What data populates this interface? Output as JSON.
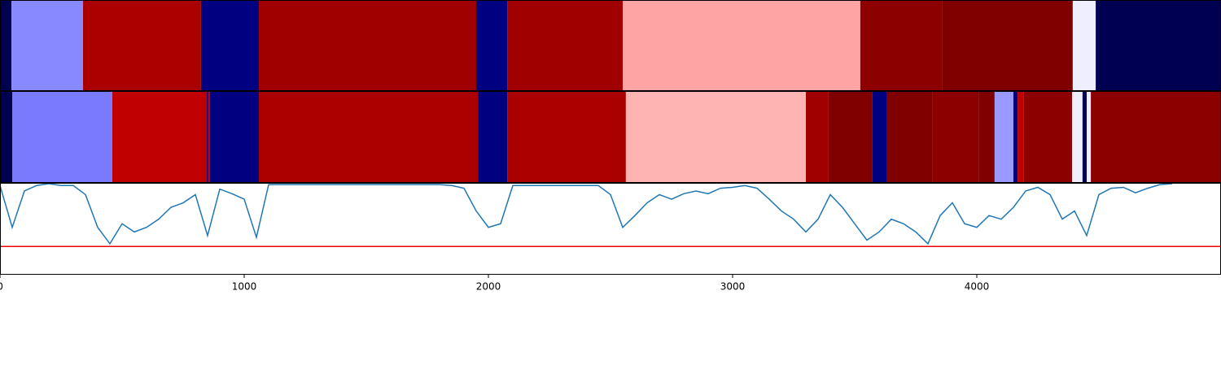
{
  "chart_data": [
    {
      "type": "segments",
      "xlim": [
        0,
        5000
      ],
      "starts": [
        0,
        47,
        340,
        823,
        1060,
        1950,
        2077,
        2550,
        3523,
        3857,
        4393,
        4487
      ],
      "ends": [
        47,
        340,
        823,
        1060,
        1950,
        2077,
        2550,
        3523,
        3857,
        4393,
        4487,
        5000
      ],
      "colors": [
        "#000050",
        "#8888ff",
        "#aa0000",
        "#000080",
        "#a00000",
        "#000080",
        "#a00000",
        "#ffa4a4",
        "#8c0000",
        "#800000",
        "#eeeeff",
        "#000050"
      ]
    },
    {
      "type": "segments",
      "xlim": [
        0,
        5000
      ],
      "starts": [
        0,
        50,
        460,
        847,
        853,
        860,
        1060,
        1957,
        2077,
        2563,
        3300,
        3393,
        3573,
        3630,
        3817,
        4007,
        4073,
        4150,
        4167,
        4193,
        4390,
        4433,
        4450,
        4467
      ],
      "ends": [
        50,
        460,
        847,
        853,
        860,
        1060,
        1957,
        2077,
        2563,
        3300,
        3393,
        3573,
        3630,
        3817,
        4007,
        4073,
        4150,
        4167,
        4193,
        4390,
        4433,
        4450,
        4467,
        5000
      ],
      "colors": [
        "#000050",
        "#7a7aff",
        "#c00000",
        "#000080",
        "#c00000",
        "#000080",
        "#aa0000",
        "#000080",
        "#aa0000",
        "#ffb4b4",
        "#a00000",
        "#800000",
        "#000080",
        "#800000",
        "#8c0000",
        "#800000",
        "#9999ff",
        "#000080",
        "#c00000",
        "#8c0000",
        "#eeeeff",
        "#000050",
        "#eeeeff",
        "#8c0000"
      ]
    },
    {
      "type": "line",
      "xlim": [
        0,
        5000
      ],
      "ylim": [
        0,
        1
      ],
      "xticks": [
        0,
        1000,
        2000,
        3000,
        4000
      ],
      "color": "#1f77b4",
      "threshold": 0.31,
      "threshold_color": "#ee0000",
      "x": [
        0,
        50,
        100,
        150,
        200,
        250,
        300,
        350,
        400,
        450,
        500,
        550,
        600,
        650,
        700,
        750,
        800,
        850,
        900,
        950,
        1000,
        1050,
        1100,
        1150,
        1200,
        1250,
        1300,
        1350,
        1400,
        1450,
        1500,
        1550,
        1600,
        1650,
        1700,
        1750,
        1800,
        1850,
        1900,
        1950,
        2000,
        2050,
        2100,
        2150,
        2200,
        2250,
        2300,
        2350,
        2400,
        2450,
        2500,
        2550,
        2600,
        2650,
        2700,
        2750,
        2800,
        2850,
        2900,
        2950,
        3000,
        3050,
        3100,
        3150,
        3200,
        3250,
        3300,
        3350,
        3400,
        3450,
        3500,
        3550,
        3600,
        3650,
        3700,
        3750,
        3800,
        3850,
        3900,
        3950,
        4000,
        4050,
        4100,
        4150,
        4200,
        4250,
        4300,
        4350,
        4400,
        4450,
        4500,
        4550,
        4600,
        4650,
        4700,
        4750,
        4800
      ],
      "values": [
        0.98,
        0.52,
        0.92,
        0.98,
        1.0,
        0.98,
        0.98,
        0.88,
        0.52,
        0.34,
        0.56,
        0.47,
        0.52,
        0.61,
        0.74,
        0.79,
        0.88,
        0.43,
        0.94,
        0.89,
        0.83,
        0.41,
        0.99,
        0.99,
        0.99,
        0.99,
        0.99,
        0.99,
        0.99,
        0.99,
        0.99,
        0.99,
        0.99,
        0.99,
        0.99,
        0.99,
        0.99,
        0.98,
        0.95,
        0.7,
        0.52,
        0.56,
        0.98,
        0.98,
        0.98,
        0.98,
        0.98,
        0.98,
        0.98,
        0.98,
        0.88,
        0.52,
        0.65,
        0.79,
        0.88,
        0.83,
        0.89,
        0.92,
        0.89,
        0.95,
        0.96,
        0.98,
        0.95,
        0.83,
        0.7,
        0.61,
        0.47,
        0.61,
        0.88,
        0.74,
        0.56,
        0.38,
        0.47,
        0.61,
        0.56,
        0.47,
        0.34,
        0.65,
        0.79,
        0.56,
        0.52,
        0.65,
        0.61,
        0.74,
        0.92,
        0.96,
        0.88,
        0.61,
        0.7,
        0.43,
        0.88,
        0.95,
        0.96,
        0.9,
        0.95,
        0.99,
        1.0
      ]
    }
  ]
}
